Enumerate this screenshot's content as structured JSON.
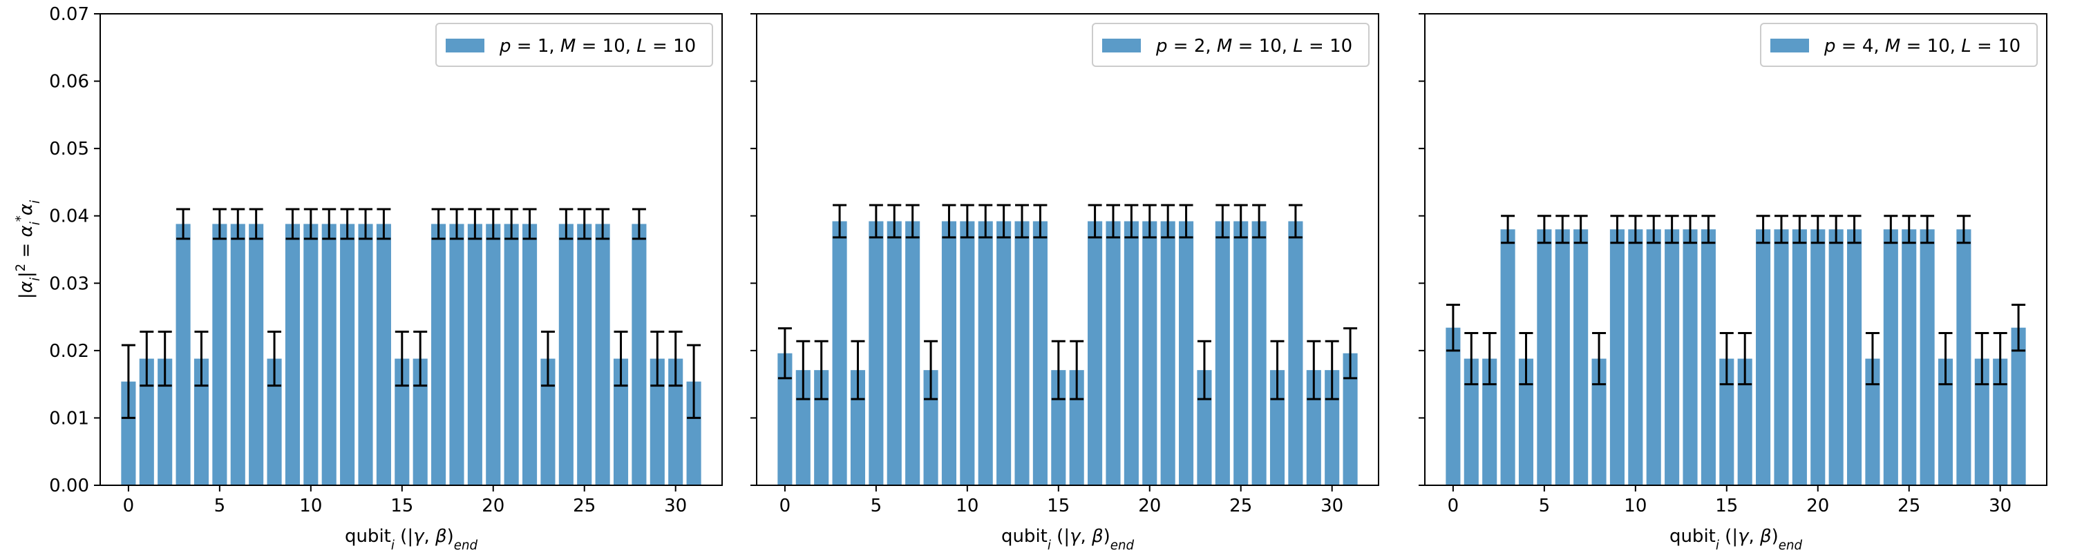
{
  "chart_data": [
    {
      "type": "bar",
      "x": [
        0,
        1,
        2,
        3,
        4,
        5,
        6,
        7,
        8,
        9,
        10,
        11,
        12,
        13,
        14,
        15,
        16,
        17,
        18,
        19,
        20,
        21,
        22,
        23,
        24,
        25,
        26,
        27,
        28,
        29,
        30,
        31
      ],
      "values": [
        0.0154,
        0.0188,
        0.0188,
        0.0388,
        0.0188,
        0.0388,
        0.0388,
        0.0388,
        0.0188,
        0.0388,
        0.0388,
        0.0388,
        0.0388,
        0.0388,
        0.0388,
        0.0188,
        0.0188,
        0.0388,
        0.0388,
        0.0388,
        0.0388,
        0.0388,
        0.0388,
        0.0188,
        0.0388,
        0.0388,
        0.0388,
        0.0188,
        0.0388,
        0.0188,
        0.0188,
        0.0154
      ],
      "errors": [
        0.0054,
        0.004,
        0.004,
        0.0022,
        0.004,
        0.0022,
        0.0022,
        0.0022,
        0.004,
        0.0022,
        0.0022,
        0.0022,
        0.0022,
        0.0022,
        0.0022,
        0.004,
        0.004,
        0.0022,
        0.0022,
        0.0022,
        0.0022,
        0.0022,
        0.0022,
        0.004,
        0.0022,
        0.0022,
        0.0022,
        0.004,
        0.0022,
        0.004,
        0.004,
        0.0054
      ],
      "legend": "p = 1, M = 10, L = 10",
      "legend_position": "upper right",
      "xlabel": "qubit_i (|γ, β⟩_end)",
      "ylabel": "|α_i|² = α_i* α_i",
      "xticks": [
        0,
        5,
        10,
        15,
        20,
        25,
        30
      ],
      "yticks": [
        0.0,
        0.01,
        0.02,
        0.03,
        0.04,
        0.05,
        0.06,
        0.07
      ],
      "ytick_labels": [
        "0.00",
        "0.01",
        "0.02",
        "0.03",
        "0.04",
        "0.05",
        "0.06",
        "0.07"
      ],
      "ylim": [
        0,
        0.07
      ],
      "xlim": [
        -1.55,
        32.55
      ],
      "bar_color": "#5b9bc8",
      "error_color": "#000000",
      "grid": false
    },
    {
      "type": "bar",
      "x": [
        0,
        1,
        2,
        3,
        4,
        5,
        6,
        7,
        8,
        9,
        10,
        11,
        12,
        13,
        14,
        15,
        16,
        17,
        18,
        19,
        20,
        21,
        22,
        23,
        24,
        25,
        26,
        27,
        28,
        29,
        30,
        31
      ],
      "values": [
        0.0196,
        0.0171,
        0.0171,
        0.0392,
        0.0171,
        0.0392,
        0.0392,
        0.0392,
        0.0171,
        0.0392,
        0.0392,
        0.0392,
        0.0392,
        0.0392,
        0.0392,
        0.0171,
        0.0171,
        0.0392,
        0.0392,
        0.0392,
        0.0392,
        0.0392,
        0.0392,
        0.0171,
        0.0392,
        0.0392,
        0.0392,
        0.0171,
        0.0392,
        0.0171,
        0.0171,
        0.0196
      ],
      "errors": [
        0.0037,
        0.0043,
        0.0043,
        0.0024,
        0.0043,
        0.0024,
        0.0024,
        0.0024,
        0.0043,
        0.0024,
        0.0024,
        0.0024,
        0.0024,
        0.0024,
        0.0024,
        0.0043,
        0.0043,
        0.0024,
        0.0024,
        0.0024,
        0.0024,
        0.0024,
        0.0024,
        0.0043,
        0.0024,
        0.0024,
        0.0024,
        0.0043,
        0.0024,
        0.0043,
        0.0043,
        0.0037
      ],
      "legend": "p = 2, M = 10, L = 10",
      "legend_position": "upper right",
      "xlabel": "qubit_i (|γ, β⟩_end)",
      "ylabel": "",
      "xticks": [
        0,
        5,
        10,
        15,
        20,
        25,
        30
      ],
      "yticks": [
        0.0,
        0.01,
        0.02,
        0.03,
        0.04,
        0.05,
        0.06,
        0.07
      ],
      "ytick_labels": [
        "",
        "",
        "",
        "",
        "",
        "",
        "",
        ""
      ],
      "ylim": [
        0,
        0.07
      ],
      "xlim": [
        -1.55,
        32.55
      ],
      "bar_color": "#5b9bc8",
      "error_color": "#000000",
      "grid": false
    },
    {
      "type": "bar",
      "x": [
        0,
        1,
        2,
        3,
        4,
        5,
        6,
        7,
        8,
        9,
        10,
        11,
        12,
        13,
        14,
        15,
        16,
        17,
        18,
        19,
        20,
        21,
        22,
        23,
        24,
        25,
        26,
        27,
        28,
        29,
        30,
        31
      ],
      "values": [
        0.0234,
        0.0188,
        0.0188,
        0.038,
        0.0188,
        0.038,
        0.038,
        0.038,
        0.0188,
        0.038,
        0.038,
        0.038,
        0.038,
        0.038,
        0.038,
        0.0188,
        0.0188,
        0.038,
        0.038,
        0.038,
        0.038,
        0.038,
        0.038,
        0.0188,
        0.038,
        0.038,
        0.038,
        0.0188,
        0.038,
        0.0188,
        0.0188,
        0.0234
      ],
      "errors": [
        0.0034,
        0.0038,
        0.0038,
        0.002,
        0.0038,
        0.002,
        0.002,
        0.002,
        0.0038,
        0.002,
        0.002,
        0.002,
        0.002,
        0.002,
        0.002,
        0.0038,
        0.0038,
        0.002,
        0.002,
        0.002,
        0.002,
        0.002,
        0.002,
        0.0038,
        0.002,
        0.002,
        0.002,
        0.0038,
        0.002,
        0.0038,
        0.0038,
        0.0034
      ],
      "legend": "p = 4, M = 10, L = 10",
      "legend_position": "upper right",
      "xlabel": "qubit_i (|γ, β⟩_end)",
      "ylabel": "",
      "xticks": [
        0,
        5,
        10,
        15,
        20,
        25,
        30
      ],
      "yticks": [
        0.0,
        0.01,
        0.02,
        0.03,
        0.04,
        0.05,
        0.06,
        0.07
      ],
      "ytick_labels": [
        "",
        "",
        "",
        "",
        "",
        "",
        "",
        ""
      ],
      "ylim": [
        0,
        0.07
      ],
      "xlim": [
        -1.55,
        32.55
      ],
      "bar_color": "#5b9bc8",
      "error_color": "#000000",
      "grid": false
    }
  ]
}
